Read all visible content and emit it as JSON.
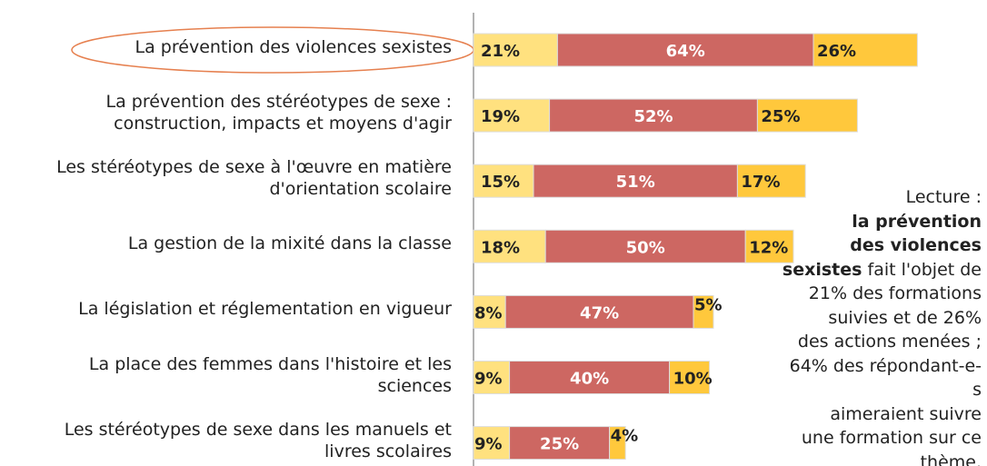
{
  "chart_data": {
    "type": "stacked_bar_horizontal",
    "categories": [
      "La prévention des violences sexistes",
      "La prévention des stéréotypes de sexe :\nconstruction, impacts et moyens d'agir",
      "Les stéréotypes de sexe à l'œuvre en matière\nd'orientation scolaire",
      "La gestion de la mixité dans la classe",
      "La législation et réglementation en vigueur",
      "La place des femmes dans l'histoire et les\nsciences",
      "Les stéréotypes de sexe dans les manuels et\nlivres scolaires"
    ],
    "series": [
      {
        "color": "#FFE17F",
        "values": [
          21,
          19,
          15,
          18,
          8,
          9,
          9
        ],
        "value_labels": [
          "21%",
          "19%",
          "15%",
          "18%",
          "8%",
          "9%",
          "9%"
        ]
      },
      {
        "color": "#CD6762",
        "values": [
          64,
          52,
          51,
          50,
          47,
          40,
          25
        ],
        "value_labels": [
          "64%",
          "52%",
          "51%",
          "50%",
          "47%",
          "40%",
          "25%"
        ]
      },
      {
        "color": "#FFC83C",
        "values": [
          26,
          25,
          17,
          12,
          5,
          10,
          4
        ],
        "value_labels": [
          "26%",
          "25%",
          "17%",
          "12%",
          "5%",
          "10%",
          "4%"
        ]
      }
    ],
    "annotation": {
      "label": "Lecture :",
      "bold": "la prévention\ndes violences\nsexistes",
      "text": "fait l'objet de\n21% des formations\nsuivies et de 26%\ndes actions menées ;\n64% des répondant-e-s\naimeraient suivre\nune formation sur ce thème."
    }
  }
}
